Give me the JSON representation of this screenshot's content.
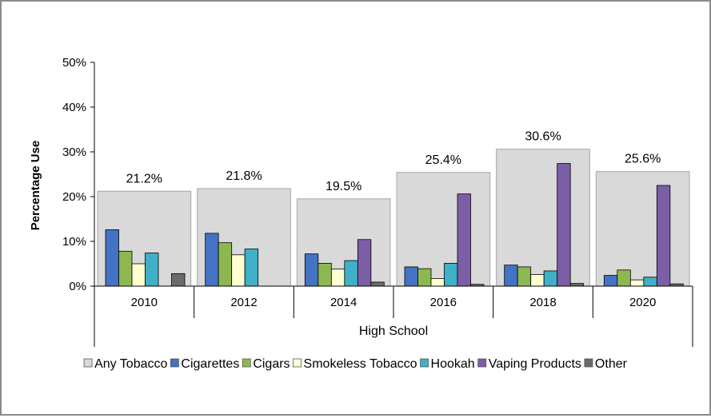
{
  "chart_data": {
    "type": "bar",
    "ylabel": "Percentage Use",
    "group_label": "High School",
    "ylim": [
      0,
      50
    ],
    "y_ticks": [
      "0%",
      "10%",
      "20%",
      "30%",
      "40%",
      "50%"
    ],
    "y_tick_values": [
      0,
      10,
      20,
      30,
      40,
      50
    ],
    "categories": [
      "2010",
      "2012",
      "2014",
      "2016",
      "2018",
      "2020"
    ],
    "background_series": {
      "name": "Any Tobacco",
      "color": "#d9d9d9",
      "values": [
        21.2,
        21.8,
        19.5,
        25.4,
        30.6,
        25.6
      ],
      "labels": [
        "21.2%",
        "21.8%",
        "19.5%",
        "25.4%",
        "30.6%",
        "25.6%"
      ]
    },
    "series": [
      {
        "name": "Cigarettes",
        "color": "#4472c4",
        "values": [
          12.6,
          11.8,
          7.2,
          4.3,
          4.7,
          2.4
        ]
      },
      {
        "name": "Cigars",
        "color": "#8db851",
        "values": [
          7.8,
          9.7,
          5.1,
          3.9,
          4.3,
          3.6
        ]
      },
      {
        "name": "Smokeless Tobacco",
        "color": "#ffffd2",
        "values": [
          5.0,
          7.0,
          3.8,
          1.7,
          2.6,
          1.4
        ]
      },
      {
        "name": "Hookah",
        "color": "#3fb0c8",
        "values": [
          7.4,
          8.3,
          5.7,
          5.1,
          3.4,
          2.0
        ]
      },
      {
        "name": "Vaping Products",
        "color": "#7c5ea6",
        "values": [
          null,
          null,
          10.4,
          20.6,
          27.4,
          22.5
        ]
      },
      {
        "name": "Other",
        "color": "#6b6b6b",
        "values": [
          2.8,
          null,
          0.9,
          0.4,
          0.6,
          0.5
        ]
      }
    ],
    "legend_position": "bottom",
    "grid": false
  }
}
